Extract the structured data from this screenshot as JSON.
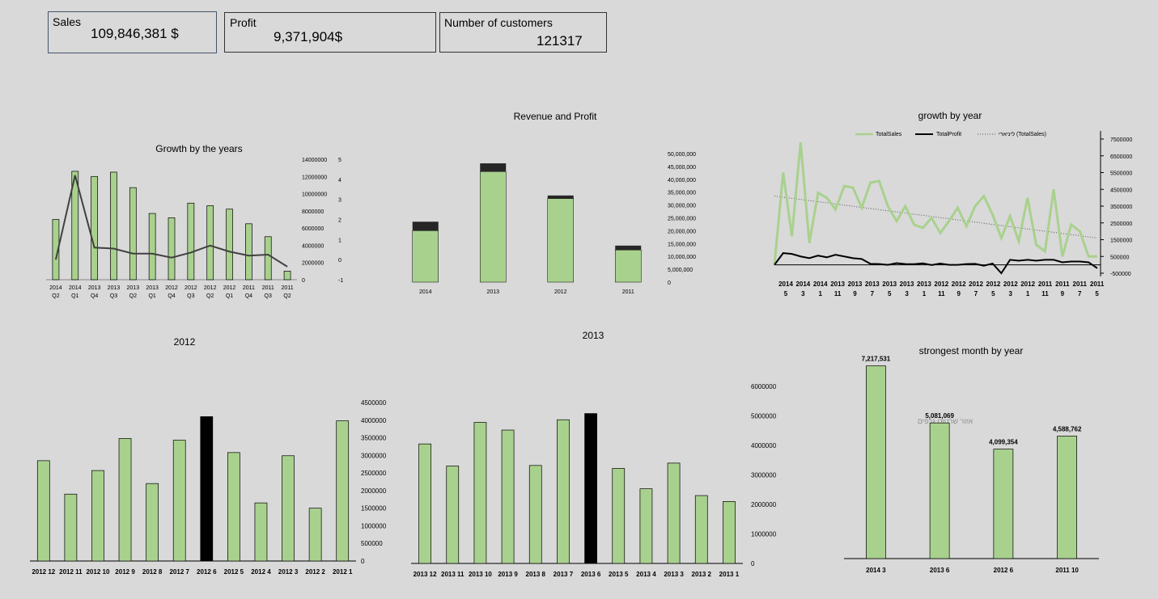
{
  "kpis": {
    "sales": {
      "label": "Sales",
      "value": "109,846,381 $"
    },
    "profit": {
      "label": "Profit",
      "value": "9,371,904$"
    },
    "customers": {
      "label": "Number of customers",
      "value": "121317"
    }
  },
  "watermark": "אזור שרטוט גרפים",
  "chart_data": [
    {
      "id": "growth_by_years",
      "type": "bar+line",
      "title": "Growth by the years",
      "categories": [
        "2014 Q2",
        "2014 Q1",
        "2013 Q4",
        "2013 Q3",
        "2013 Q2",
        "2013 Q1",
        "2012 Q4",
        "2012 Q3",
        "2012 Q2",
        "2012 Q1",
        "2011 Q4",
        "2011 Q3",
        "2011 Q2"
      ],
      "series": [
        {
          "name": "Sales",
          "type": "bar",
          "axis": "left",
          "values": [
            7000000,
            12600000,
            12000000,
            12500000,
            10700000,
            7700000,
            7200000,
            8900000,
            8600000,
            8200000,
            6500000,
            5000000,
            1000000
          ]
        },
        {
          "name": "Growth",
          "type": "line",
          "axis": "right",
          "values": [
            0,
            4.2,
            0.6,
            0.55,
            0.3,
            0.3,
            0.1,
            0.35,
            0.7,
            0.4,
            0.2,
            0.25,
            -0.35
          ]
        }
      ],
      "ylim_left": [
        0,
        14000000
      ],
      "yticks_left": [
        "14000000",
        "12000000",
        "10000000",
        "8000000",
        "6000000",
        "4000000",
        "2000000",
        "0"
      ],
      "ylim_right": [
        -1,
        5
      ],
      "yticks_right": [
        "5",
        "4",
        "3",
        "2",
        "1",
        "0",
        "-1"
      ]
    },
    {
      "id": "revenue_profit",
      "type": "stacked-bar",
      "title": "Revenue and Profit",
      "categories": [
        "2014",
        "2013",
        "2012",
        "2011"
      ],
      "series": [
        {
          "name": "Revenue",
          "values": [
            20000000,
            43000000,
            32500000,
            12500000
          ]
        },
        {
          "name": "Profit",
          "values": [
            3500000,
            3200000,
            1200000,
            1700000
          ]
        }
      ],
      "ylim": [
        0,
        50000000
      ],
      "yticks": [
        "50,000,000",
        "45,000,000",
        "40,000,000",
        "35,000,000",
        "30,000,000",
        "25,000,000",
        "20,000,000",
        "15,000,000",
        "10,000,000",
        "5,000,000",
        "0"
      ]
    },
    {
      "id": "growth_by_year",
      "type": "line",
      "title": "growth by year",
      "legend": [
        "TotalSales",
        "TotalProfit",
        "ליניארי (TotalSales)"
      ],
      "series": [
        {
          "name": "TotalSales",
          "values": [
            0,
            5500000,
            1700000,
            7300000,
            1300000,
            4300000,
            4000000,
            3300000,
            4700000,
            4600000,
            3400000,
            4900000,
            5000000,
            3500000,
            2600000,
            3500000,
            2400000,
            2200000,
            2800000,
            1900000,
            2600000,
            3400000,
            2300000,
            3500000,
            4100000,
            3000000,
            1600000,
            2900000,
            1400000,
            4000000,
            1200000,
            800000,
            4500000,
            500000,
            2400000,
            2000000,
            500000,
            500000
          ]
        },
        {
          "name": "TotalProfit",
          "values": [
            0,
            700000,
            650000,
            500000,
            400000,
            550000,
            450000,
            600000,
            500000,
            400000,
            350000,
            60000,
            50000,
            0,
            100000,
            50000,
            40000,
            90000,
            -10000,
            80000,
            0,
            0,
            50000,
            60000,
            -50000,
            80000,
            -500000,
            300000,
            250000,
            300000,
            250000,
            300000,
            300000,
            150000,
            200000,
            200000,
            150000,
            -200000
          ]
        }
      ],
      "trend": [
        4100000,
        1600000
      ],
      "xticks": [
        [
          "2014",
          "5"
        ],
        [
          "2014",
          "3"
        ],
        [
          "2014",
          "1"
        ],
        [
          "2013",
          "11"
        ],
        [
          "2013",
          "9"
        ],
        [
          "2013",
          "7"
        ],
        [
          "2013",
          "5"
        ],
        [
          "2013",
          "3"
        ],
        [
          "2013",
          "1"
        ],
        [
          "2012",
          "11"
        ],
        [
          "2012",
          "9"
        ],
        [
          "2012",
          "7"
        ],
        [
          "2012",
          "5"
        ],
        [
          "2012",
          "3"
        ],
        [
          "2012",
          "1"
        ],
        [
          "2011",
          "11"
        ],
        [
          "2011",
          "9"
        ],
        [
          "2011",
          "7"
        ],
        [
          "2011",
          "5"
        ]
      ],
      "ylim": [
        -500000,
        7500000
      ],
      "yticks": [
        "7500000",
        "6500000",
        "5500000",
        "4500000",
        "3500000",
        "2500000",
        "1500000",
        "500000",
        "-500000"
      ]
    },
    {
      "id": "monthly_2012",
      "type": "bar",
      "title": "2012",
      "categories": [
        "2012 12",
        "2012 11",
        "2012 10",
        "2012 9",
        "2012 8",
        "2012 7",
        "2012 6",
        "2012 5",
        "2012 4",
        "2012 3",
        "2012 2",
        "2012 1"
      ],
      "values": [
        2850000,
        1900000,
        2570000,
        3480000,
        2200000,
        3430000,
        4100000,
        3080000,
        1650000,
        2990000,
        1500000,
        3980000
      ],
      "highlight": "2012 6",
      "ylim": [
        0,
        4500000
      ],
      "yticks": [
        "4500000",
        "4000000",
        "3500000",
        "3000000",
        "2500000",
        "2000000",
        "1500000",
        "1000000",
        "500000",
        "0"
      ]
    },
    {
      "id": "monthly_2013",
      "type": "bar",
      "title": "2013",
      "categories": [
        "2013 12",
        "2013 11",
        "2013 10",
        "2013 9",
        "2013 8",
        "2013 7",
        "2013 6",
        "2013 5",
        "2013 4",
        "2013 3",
        "2013 2",
        "2013 1"
      ],
      "values": [
        4050000,
        3300000,
        4780000,
        4520000,
        3320000,
        4870000,
        5080000,
        3220000,
        2530000,
        3400000,
        2300000,
        2100000
      ],
      "highlight": "2013 6",
      "ylim": [
        0,
        6000000
      ],
      "yticks": [
        "6000000",
        "5000000",
        "4000000",
        "3000000",
        "2000000",
        "1000000",
        "0"
      ]
    },
    {
      "id": "strongest_month",
      "type": "bar",
      "title": "strongest month by year",
      "categories": [
        "2014 3",
        "2013 6",
        "2012 6",
        "2011 10"
      ],
      "values": [
        7217531,
        5081069,
        4099354,
        4588762
      ],
      "labels": [
        "7,217,531",
        "5,081,069",
        "4,099,354",
        "4,588,762"
      ],
      "ylim": [
        0,
        7600000
      ]
    }
  ]
}
